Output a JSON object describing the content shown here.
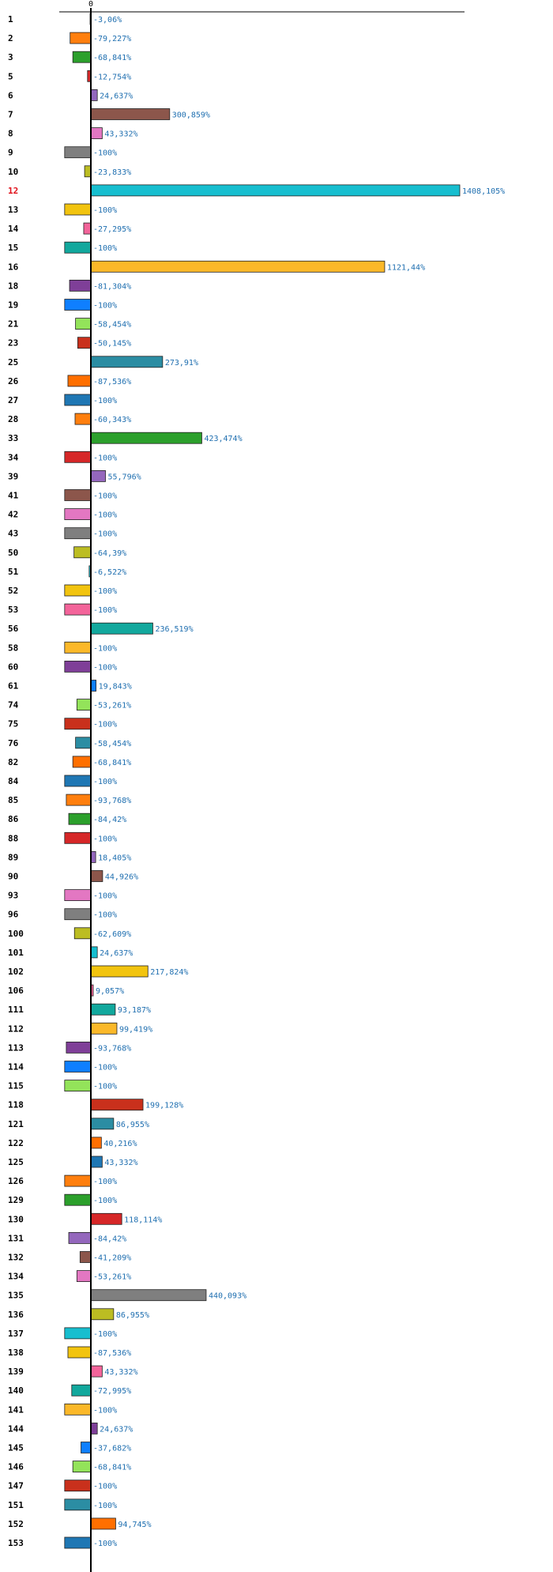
{
  "chart_data": {
    "type": "bar",
    "orientation": "horizontal",
    "categories": [
      "1",
      "2",
      "3",
      "5",
      "6",
      "7",
      "8",
      "9",
      "10",
      "12",
      "13",
      "14",
      "15",
      "16",
      "18",
      "19",
      "21",
      "23",
      "25",
      "26",
      "27",
      "28",
      "33",
      "34",
      "39",
      "41",
      "42",
      "43",
      "50",
      "51",
      "52",
      "53",
      "56",
      "58",
      "60",
      "61",
      "74",
      "75",
      "76",
      "82",
      "84",
      "85",
      "86",
      "88",
      "89",
      "90",
      "93",
      "96",
      "100",
      "101",
      "102",
      "106",
      "111",
      "112",
      "113",
      "114",
      "115",
      "118",
      "121",
      "122",
      "125",
      "126",
      "129",
      "130",
      "131",
      "132",
      "134",
      "135",
      "136",
      "137",
      "138",
      "139",
      "140",
      "141",
      "144",
      "145",
      "146",
      "147",
      "151",
      "152",
      "153"
    ],
    "values": [
      -3.06,
      -79.227,
      -68.841,
      -12.754,
      24.637,
      300.859,
      43.332,
      -100,
      -23.833,
      1408.105,
      -100,
      -27.295,
      -100,
      1121.44,
      -81.304,
      -100,
      -58.454,
      -50.145,
      273.91,
      -87.536,
      -100,
      -60.343,
      423.474,
      -100,
      55.796,
      -100,
      -100,
      -100,
      -64.39,
      -6.522,
      -100,
      -100,
      236.519,
      -100,
      -100,
      19.843,
      -53.261,
      -100,
      -58.454,
      -68.841,
      -100,
      -93.768,
      -84.42,
      -100,
      18.405,
      44.926,
      -100,
      -100,
      -62.609,
      24.637,
      217.824,
      9.057,
      93.187,
      99.419,
      -93.768,
      -100,
      -100,
      199.128,
      86.955,
      40.216,
      43.332,
      -100,
      -100,
      118.114,
      -84.42,
      -41.209,
      -53.261,
      440.093,
      86.955,
      -100,
      -87.536,
      43.332,
      -72.995,
      -100,
      24.637,
      -37.682,
      -68.841,
      -100,
      -100,
      94.745,
      -100
    ],
    "value_labels": [
      "-3,06%",
      "-79,227%",
      "-68,841%",
      "-12,754%",
      "24,637%",
      "300,859%",
      "43,332%",
      "-100%",
      "-23,833%",
      "1408,105%",
      "-100%",
      "-27,295%",
      "-100%",
      "1121,44%",
      "-81,304%",
      "-100%",
      "-58,454%",
      "-50,145%",
      "273,91%",
      "-87,536%",
      "-100%",
      "-60,343%",
      "423,474%",
      "-100%",
      "55,796%",
      "-100%",
      "-100%",
      "-100%",
      "-64,39%",
      "-6,522%",
      "-100%",
      "-100%",
      "236,519%",
      "-100%",
      "-100%",
      "19,843%",
      "-53,261%",
      "-100%",
      "-58,454%",
      "-68,841%",
      "-100%",
      "-93,768%",
      "-84,42%",
      "-100%",
      "18,405%",
      "44,926%",
      "-100%",
      "-100%",
      "-62,609%",
      "24,637%",
      "217,824%",
      "9,057%",
      "93,187%",
      "99,419%",
      "-93,768%",
      "-100%",
      "-100%",
      "199,128%",
      "86,955%",
      "40,216%",
      "43,332%",
      "-100%",
      "-100%",
      "118,114%",
      "-84,42%",
      "-41,209%",
      "-53,261%",
      "440,093%",
      "86,955%",
      "-100%",
      "-87,536%",
      "43,332%",
      "-72,995%",
      "-100%",
      "24,637%",
      "-37,682%",
      "-68,841%",
      "-100%",
      "-100%",
      "94,745%",
      "-100%"
    ],
    "highlighted_category": "12",
    "highlight_color": "#e0101a",
    "value_label_color": "#1f6fb0",
    "colors": [
      "#1f77b4",
      "#ff7f0e",
      "#2ca02c",
      "#d62728",
      "#9467bd",
      "#8c564b",
      "#e377c2",
      "#7f7f7f",
      "#bcbd22",
      "#17becf",
      "#f2c40f",
      "#f3649a",
      "#12a89d",
      "#fbb829",
      "#7f3f98",
      "#0f7fff",
      "#93e35a",
      "#c9301c",
      "#2b8da3",
      "#ff6f00"
    ],
    "xaxis": {
      "tick_labels": [
        "0"
      ],
      "xlim": [
        -100,
        1408.105
      ]
    },
    "grid": false,
    "legend": false,
    "title": "",
    "xlabel": "",
    "ylabel": ""
  }
}
